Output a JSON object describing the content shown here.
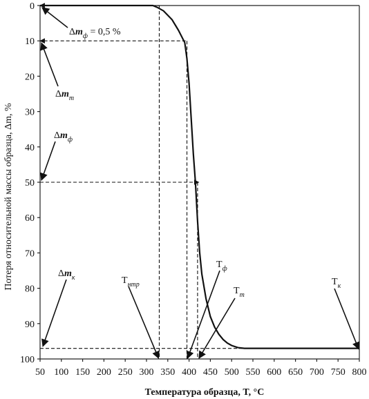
{
  "chart_data": {
    "type": "line",
    "title": "",
    "xlabel": "Температура образца, T, °C",
    "ylabel": "Потеря относительной массы образца, Δm, %",
    "xlim": [
      50,
      800
    ],
    "ylim": [
      0,
      100
    ],
    "y_inverted": true,
    "x_ticks": [
      50,
      100,
      150,
      200,
      250,
      300,
      350,
      400,
      450,
      500,
      550,
      600,
      650,
      700,
      750,
      800
    ],
    "y_ticks": [
      0,
      10,
      20,
      30,
      40,
      50,
      60,
      70,
      80,
      90,
      100
    ],
    "grid": false,
    "series": [
      {
        "x": [
          50,
          300,
          315,
          325,
          340,
          360,
          375,
          390,
          395,
          400,
          405,
          410,
          415,
          420,
          425,
          430,
          440,
          450,
          460,
          470,
          480,
          490,
          500,
          515,
          530,
          560,
          600,
          650,
          700,
          750,
          800
        ],
        "y": [
          0,
          0,
          0,
          0.5,
          1.5,
          4,
          7,
          10.5,
          15,
          22,
          32,
          42,
          50,
          61,
          70,
          76,
          83,
          88,
          91,
          93,
          94.5,
          95.5,
          96.2,
          96.8,
          97,
          97,
          97,
          97,
          97,
          97,
          97
        ]
      }
    ],
    "annotations": [
      {
        "id": "dm_phi_05",
        "label": "Δm",
        "sub": "ф",
        "suffix": " = 0,5 %",
        "target_x": 50,
        "target_y": 0,
        "guide_x": 325,
        "guide_y": 0.5
      },
      {
        "id": "dm_t",
        "label": "Δm",
        "sub": "т",
        "suffix": "",
        "target_x": 50,
        "target_y": 10,
        "guide_x": 392,
        "guide_y": 10
      },
      {
        "id": "dm_phi",
        "label": "Δm",
        "sub": "ф",
        "suffix": "",
        "target_x": 50,
        "target_y": 50,
        "guide_x": 418,
        "guide_y": 50
      },
      {
        "id": "dm_k",
        "label": "Δm",
        "sub": "к",
        "suffix": "",
        "target_x": 50,
        "target_y": 97,
        "guide_x": 800,
        "guide_y": 97
      },
      {
        "id": "t_ntr",
        "label": "T",
        "sub": "нтр",
        "suffix": "",
        "target_x": 330,
        "target_y": 100
      },
      {
        "id": "t_phi",
        "label": "T",
        "sub": "ф",
        "suffix": "",
        "target_x": 395,
        "target_y": 100
      },
      {
        "id": "t_m",
        "label": "T",
        "sub": "m",
        "suffix": "",
        "target_x": 420,
        "target_y": 100
      },
      {
        "id": "t_k",
        "label": "T",
        "sub": "к",
        "suffix": "",
        "target_x": 800,
        "target_y": 97
      }
    ]
  }
}
